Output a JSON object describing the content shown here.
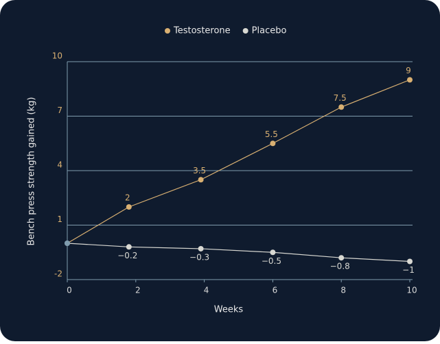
{
  "chart_data": {
    "type": "line",
    "x_label": "Weeks",
    "y_label": "Bench press strength gained (kg)",
    "x": [
      0,
      1.8,
      3.9,
      6,
      8,
      10
    ],
    "series": [
      {
        "name": "Testosterone",
        "color": "#d9b072",
        "values": [
          0,
          2,
          3.5,
          5.5,
          7.5,
          9
        ],
        "value_labels": [
          null,
          "2",
          "3.5",
          "5.5",
          "7.5",
          "9"
        ],
        "label_position": "above"
      },
      {
        "name": "Placebo",
        "color": "#d8d8d2",
        "values": [
          0,
          -0.2,
          -0.3,
          -0.5,
          -0.8,
          -1
        ],
        "value_labels": [
          null,
          "−0.2",
          "−0.3",
          "−0.5",
          "−0.8",
          "−1"
        ],
        "label_position": "below"
      }
    ],
    "xlim": [
      0,
      10
    ],
    "xticks": [
      0,
      2,
      4,
      6,
      8,
      10
    ],
    "ylim": [
      -2,
      10
    ],
    "yticks": [
      -2,
      1,
      4,
      7,
      10
    ],
    "grid": true,
    "legend": "top"
  }
}
